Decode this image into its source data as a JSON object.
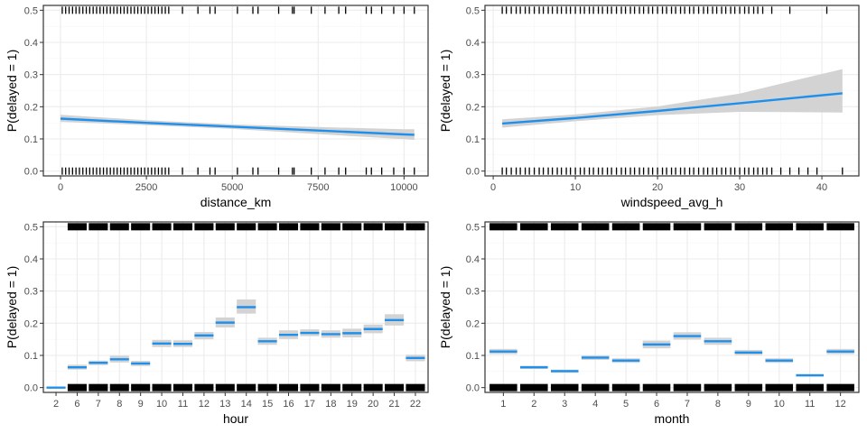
{
  "colors": {
    "line": "#1e90ec",
    "ribbon": "#d3d3d3",
    "rug": "#000000",
    "panel_border": "#333333",
    "grid_major": "#ebebeb",
    "grid_minor": "#f5f5f5"
  },
  "chart_data": [
    {
      "type": "line",
      "xlabel": "distance_km",
      "ylabel": "P(delayed = 1)",
      "xlim": [
        -500,
        10700
      ],
      "ylim": [
        -0.015,
        0.515
      ],
      "x_ticks": [
        0,
        2500,
        5000,
        7500,
        10000
      ],
      "x_tick_labels": [
        "0",
        "2500",
        "5000",
        "7500",
        "10000"
      ],
      "y_ticks": [
        0.0,
        0.1,
        0.2,
        0.3,
        0.4,
        0.5
      ],
      "y_tick_labels": [
        "0.0",
        "0.1",
        "0.2",
        "0.3",
        "0.4",
        "0.5"
      ],
      "grid": true,
      "series": [
        {
          "x": [
            0,
            2500,
            5000,
            7500,
            10000,
            10300
          ],
          "y": [
            0.163,
            0.15,
            0.138,
            0.126,
            0.114,
            0.113
          ],
          "lower": [
            0.153,
            0.143,
            0.131,
            0.115,
            0.099,
            0.097
          ],
          "upper": [
            0.175,
            0.158,
            0.145,
            0.137,
            0.13,
            0.13
          ]
        }
      ],
      "rug_bottom": [
        50,
        150,
        250,
        350,
        450,
        550,
        650,
        750,
        850,
        950,
        1050,
        1150,
        1250,
        1350,
        1450,
        1550,
        1650,
        1750,
        1850,
        1950,
        2050,
        2150,
        2250,
        2350,
        2450,
        2550,
        2650,
        2750,
        2850,
        2950,
        3050,
        3150,
        3550,
        4000,
        4350,
        4500,
        5150,
        5600,
        5750,
        6350,
        6750,
        6800,
        7300,
        7700,
        8100,
        8300,
        8900,
        9050,
        9350,
        9700,
        10000,
        10300
      ],
      "rug_top": [
        50,
        150,
        250,
        350,
        450,
        550,
        650,
        750,
        850,
        950,
        1050,
        1150,
        1250,
        1350,
        1450,
        1550,
        1650,
        1750,
        1850,
        1950,
        2050,
        2150,
        2250,
        2350,
        2450,
        2550,
        2650,
        2750,
        2850,
        2950,
        3050,
        3150,
        3550,
        4000,
        4350,
        4500,
        5150,
        5600,
        5750,
        6350,
        6750,
        6800,
        7300,
        7700,
        8100,
        8300,
        8900,
        9050,
        9350,
        9700,
        10000,
        10300
      ]
    },
    {
      "type": "line",
      "xlabel": "windspeed_avg_h",
      "ylabel": "P(delayed = 1)",
      "xlim": [
        -1,
        44.5
      ],
      "ylim": [
        -0.015,
        0.515
      ],
      "x_ticks": [
        0,
        10,
        20,
        30,
        40
      ],
      "x_tick_labels": [
        "0",
        "10",
        "20",
        "30",
        "40"
      ],
      "y_ticks": [
        0.0,
        0.1,
        0.2,
        0.3,
        0.4,
        0.5
      ],
      "y_tick_labels": [
        "0.0",
        "0.1",
        "0.2",
        "0.3",
        "0.4",
        "0.5"
      ],
      "grid": true,
      "series": [
        {
          "x": [
            1.1,
            10,
            20,
            30,
            42.5
          ],
          "y": [
            0.148,
            0.165,
            0.187,
            0.211,
            0.242
          ],
          "lower": [
            0.135,
            0.155,
            0.174,
            0.184,
            0.182
          ],
          "upper": [
            0.161,
            0.176,
            0.201,
            0.241,
            0.317
          ]
        }
      ],
      "rug_bottom": [
        1.1,
        1.6,
        2.2,
        2.8,
        3.3,
        3.9,
        4.4,
        5.0,
        5.6,
        6.1,
        6.7,
        7.2,
        7.8,
        8.3,
        8.9,
        9.4,
        10.0,
        10.6,
        11.1,
        11.7,
        12.2,
        12.8,
        13.3,
        13.9,
        14.4,
        15.0,
        15.6,
        16.1,
        16.7,
        17.2,
        17.8,
        18.3,
        18.9,
        19.4,
        20.0,
        20.6,
        21.1,
        21.7,
        22.2,
        22.8,
        23.3,
        23.9,
        24.4,
        25.0,
        25.6,
        26.1,
        26.7,
        27.2,
        27.8,
        28.3,
        28.9,
        29.4,
        30.0,
        30.6,
        31.1,
        31.7,
        32.2,
        32.8,
        33.3,
        33.9,
        35.0,
        36.1,
        37.2,
        38.3,
        39.4,
        42.5
      ],
      "rug_top": [
        1.1,
        1.6,
        2.2,
        2.8,
        3.3,
        3.9,
        4.4,
        5.0,
        5.6,
        6.1,
        6.7,
        7.2,
        7.8,
        8.3,
        8.9,
        9.4,
        10.0,
        10.6,
        11.1,
        11.7,
        12.2,
        12.8,
        13.3,
        13.9,
        14.4,
        15.0,
        15.6,
        16.1,
        16.7,
        17.2,
        17.8,
        18.3,
        18.9,
        19.4,
        20.0,
        20.6,
        21.1,
        21.7,
        22.2,
        22.8,
        23.3,
        23.9,
        24.4,
        25.0,
        25.6,
        26.1,
        26.7,
        27.2,
        27.8,
        28.3,
        28.9,
        29.4,
        30.0,
        30.6,
        31.1,
        31.7,
        32.2,
        32.8,
        33.9,
        36.1,
        40.6
      ]
    },
    {
      "type": "line",
      "xlabel": "hour",
      "ylabel": "P(delayed = 1)",
      "ylim": [
        -0.015,
        0.515
      ],
      "categories": [
        "2",
        "6",
        "7",
        "8",
        "9",
        "10",
        "11",
        "12",
        "13",
        "14",
        "15",
        "16",
        "17",
        "18",
        "19",
        "20",
        "21",
        "22"
      ],
      "y_ticks": [
        0.0,
        0.1,
        0.2,
        0.3,
        0.4,
        0.5
      ],
      "y_tick_labels": [
        "0.0",
        "0.1",
        "0.2",
        "0.3",
        "0.4",
        "0.5"
      ],
      "grid": true,
      "series": [
        {
          "values": [
            0.0,
            0.063,
            0.077,
            0.088,
            0.075,
            0.137,
            0.136,
            0.162,
            0.202,
            0.25,
            0.144,
            0.164,
            0.17,
            0.166,
            0.169,
            0.182,
            0.21,
            0.092
          ],
          "lower": [
            0.0,
            0.056,
            0.07,
            0.078,
            0.067,
            0.126,
            0.126,
            0.15,
            0.187,
            0.23,
            0.133,
            0.151,
            0.16,
            0.155,
            0.156,
            0.169,
            0.193,
            0.082
          ],
          "upper": [
            0.003,
            0.071,
            0.084,
            0.099,
            0.083,
            0.148,
            0.147,
            0.173,
            0.218,
            0.274,
            0.155,
            0.178,
            0.181,
            0.178,
            0.183,
            0.196,
            0.228,
            0.102
          ]
        }
      ],
      "rug_bottom_categories": [
        "6",
        "7",
        "8",
        "9",
        "10",
        "11",
        "12",
        "13",
        "14",
        "15",
        "16",
        "17",
        "18",
        "19",
        "20",
        "21",
        "22"
      ],
      "rug_top_categories": [
        "6",
        "7",
        "8",
        "9",
        "10",
        "11",
        "12",
        "13",
        "14",
        "15",
        "16",
        "17",
        "18",
        "19",
        "20",
        "21",
        "22"
      ]
    },
    {
      "type": "line",
      "xlabel": "month",
      "ylabel": "P(delayed = 1)",
      "ylim": [
        -0.015,
        0.515
      ],
      "categories": [
        "1",
        "2",
        "3",
        "4",
        "5",
        "6",
        "7",
        "8",
        "9",
        "10",
        "11",
        "12"
      ],
      "y_ticks": [
        0.0,
        0.1,
        0.2,
        0.3,
        0.4,
        0.5
      ],
      "y_tick_labels": [
        "0.0",
        "0.1",
        "0.2",
        "0.3",
        "0.4",
        "0.5"
      ],
      "grid": true,
      "series": [
        {
          "values": [
            0.112,
            0.063,
            0.051,
            0.093,
            0.084,
            0.134,
            0.16,
            0.144,
            0.109,
            0.084,
            0.038,
            0.112
          ],
          "lower": [
            0.104,
            0.058,
            0.046,
            0.086,
            0.077,
            0.122,
            0.149,
            0.133,
            0.101,
            0.077,
            0.034,
            0.104
          ],
          "upper": [
            0.12,
            0.068,
            0.056,
            0.1,
            0.091,
            0.146,
            0.172,
            0.155,
            0.117,
            0.091,
            0.042,
            0.12
          ]
        }
      ],
      "rug_bottom_categories": [
        "1",
        "2",
        "3",
        "4",
        "5",
        "6",
        "7",
        "8",
        "9",
        "10",
        "11",
        "12"
      ],
      "rug_top_categories": [
        "1",
        "2",
        "3",
        "4",
        "5",
        "6",
        "7",
        "8",
        "9",
        "10",
        "11",
        "12"
      ]
    }
  ]
}
